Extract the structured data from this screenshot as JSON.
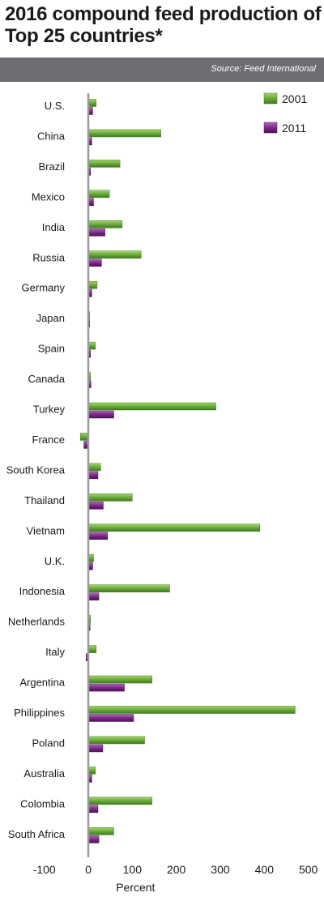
{
  "title": "2016 compound feed production of Top 25 countries*",
  "source": "Source: Feed International",
  "colors": {
    "series_2001": "#6aaa3c",
    "series_2011": "#7b2a86",
    "header_bar": "#6d6e71"
  },
  "chart_data": {
    "type": "bar",
    "orientation": "horizontal",
    "title": "2016 compound feed production of Top 25 countries*",
    "xlabel": "Percent",
    "ylabel": "",
    "xlim": [
      -100,
      500
    ],
    "xticks": [
      -100,
      0,
      100,
      200,
      300,
      400,
      500
    ],
    "xtick_labels": [
      "-100",
      "0",
      "100",
      "200",
      "300",
      "400",
      "500"
    ],
    "legend_position": "top-right",
    "categories": [
      "U.S.",
      "China",
      "Brazil",
      "Mexico",
      "India",
      "Russia",
      "Germany",
      "Japan",
      "Spain",
      "Canada",
      "Turkey",
      "France",
      "South Korea",
      "Thailand",
      "Vietnam",
      "U.K.",
      "Indonesia",
      "Netherlands",
      "Italy",
      "Argentina",
      "Philippines",
      "Poland",
      "Australia",
      "Colombia",
      "South Africa"
    ],
    "series": [
      {
        "name": "2001",
        "values": [
          18,
          165,
          72,
          48,
          77,
          120,
          20,
          3,
          16,
          5,
          290,
          -18,
          28,
          100,
          390,
          12,
          185,
          5,
          18,
          145,
          470,
          128,
          16,
          145,
          58
        ]
      },
      {
        "name": "2011",
        "values": [
          10,
          8,
          5,
          12,
          38,
          30,
          8,
          3,
          5,
          6,
          58,
          -10,
          22,
          34,
          44,
          10,
          24,
          4,
          -5,
          82,
          103,
          33,
          8,
          22,
          24
        ]
      }
    ]
  }
}
